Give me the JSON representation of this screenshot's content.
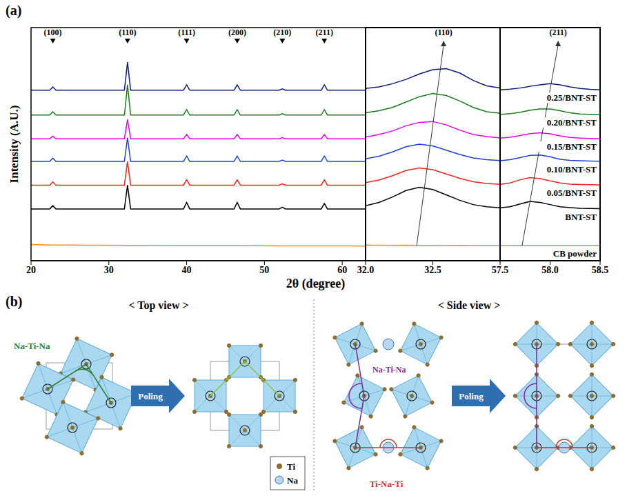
{
  "chart_data": [
    {
      "type": "line",
      "panel_label": "(a)",
      "y_label": "Intensity (A.U.)",
      "grid": false,
      "tick_labels": "x",
      "xlim": [
        20,
        63
      ],
      "xticks": [
        20,
        30,
        40,
        50,
        60
      ],
      "ylim": [
        0,
        108
      ],
      "yticks": [],
      "x": [
        20,
        22.4,
        22.8,
        23.2,
        32.0,
        32.4,
        32.8,
        39.6,
        40.0,
        40.4,
        46.1,
        46.5,
        46.9,
        51.9,
        52.3,
        52.7,
        57.3,
        57.7,
        58.1,
        63
      ],
      "series": [
        {
          "color": "#ff8c00",
          "values": [
            7.5,
            7.3,
            7.3,
            7.3,
            7.1,
            7.1,
            7.1,
            7,
            7,
            7,
            7,
            7,
            7,
            6.9,
            6.9,
            6.9,
            6.9,
            6.9,
            6.9,
            6.8
          ]
        },
        {
          "color": "#000000",
          "values": [
            24,
            24,
            25.5,
            24,
            24,
            35,
            24,
            24,
            27,
            24,
            24,
            27,
            24,
            24,
            24.8,
            24,
            24,
            26.5,
            24,
            24
          ]
        },
        {
          "color": "#e8251f",
          "values": [
            35,
            35,
            36.5,
            35,
            35,
            46,
            35,
            35,
            37.5,
            35,
            35,
            37.5,
            35,
            35,
            35.6,
            35,
            35,
            37.5,
            35,
            35
          ]
        },
        {
          "color": "#1f3fd6",
          "values": [
            46,
            46,
            47.5,
            46,
            46,
            57,
            46,
            46,
            48.5,
            46,
            46,
            48.5,
            46,
            46,
            46.6,
            46,
            46,
            48.5,
            46,
            46
          ]
        },
        {
          "color": "#e600e6",
          "values": [
            56.5,
            56.5,
            57.7,
            56.5,
            56.5,
            65.5,
            56.5,
            56.5,
            58.5,
            56.5,
            56.5,
            58.5,
            56.5,
            56.5,
            57,
            56.5,
            56.5,
            58.5,
            56.5,
            56.5
          ]
        },
        {
          "color": "#1a7a1a",
          "values": [
            67.5,
            67.5,
            69,
            67.5,
            67.5,
            81.5,
            67.5,
            67.5,
            70,
            67.5,
            67.5,
            70,
            67.5,
            67.5,
            68.1,
            67.5,
            67.5,
            70,
            67.5,
            67.5
          ]
        },
        {
          "color": "#0a1a7a",
          "values": [
            79,
            79,
            80.5,
            79,
            79,
            92,
            79,
            79,
            81.5,
            79,
            79,
            81.5,
            79,
            79,
            79.6,
            79,
            79,
            81.5,
            79,
            79
          ]
        }
      ],
      "annotations": [
        {
          "label": "(100)",
          "x": 22.8
        },
        {
          "label": "(110)",
          "x": 32.4
        },
        {
          "label": "(111)",
          "x": 40.0
        },
        {
          "label": "(200)",
          "x": 46.5
        },
        {
          "label": "(210)",
          "x": 52.3
        },
        {
          "label": "(211)",
          "x": 57.7
        }
      ]
    },
    {
      "type": "line",
      "x_label": "2θ (degree)",
      "grid": false,
      "tick_labels": "x",
      "xlim": [
        32.0,
        33.0
      ],
      "xticks": [
        {
          "value": 32.0,
          "label": "32.0"
        },
        32.5
      ],
      "ylim": [
        0,
        108
      ],
      "yticks": [],
      "x": [
        32.0,
        32.1,
        32.2,
        32.3,
        32.4,
        32.5,
        32.6,
        32.7,
        32.8,
        32.9,
        33.0
      ],
      "series": [
        {
          "color": "#ff8c00",
          "values": [
            7.2,
            7.2,
            7.1,
            7.2,
            7.1,
            7.1,
            7,
            7.1,
            7,
            7,
            7
          ]
        },
        {
          "color": "#000000",
          "values": [
            25.5,
            27,
            29.5,
            32.5,
            34,
            33,
            30.5,
            28,
            26,
            25,
            24.5
          ]
        },
        {
          "color": "#e8251f",
          "values": [
            36.2,
            37.4,
            39.4,
            41.8,
            43,
            42.2,
            40.2,
            38.2,
            36.6,
            35.8,
            35.4
          ]
        },
        {
          "color": "#1f3fd6",
          "values": [
            47.2,
            48.4,
            50.4,
            52.8,
            54,
            53.2,
            51.2,
            49.2,
            47.6,
            46.8,
            46.4
          ]
        },
        {
          "color": "#e600e6",
          "values": [
            57.3,
            58.5,
            60.1,
            62.5,
            64.1,
            64.5,
            62.9,
            60.5,
            58.5,
            57.5,
            56.9
          ]
        },
        {
          "color": "#1a7a1a",
          "values": [
            68.5,
            69.5,
            71,
            73.5,
            76,
            77.5,
            76.5,
            74,
            71,
            69,
            68.3
          ]
        },
        {
          "color": "#0a1a7a",
          "values": [
            79.8,
            80.5,
            82,
            84,
            86.5,
            88.5,
            89,
            87,
            83.5,
            81,
            80
          ]
        }
      ],
      "annotations": [
        {
          "label": "(110)",
          "x": 32.58
        }
      ],
      "trend_arrow": {
        "x": [
          32.38,
          32.58
        ],
        "y": [
          7,
          100
        ]
      }
    },
    {
      "type": "line",
      "grid": false,
      "tick_labels": "x",
      "xlim": [
        57.5,
        58.5
      ],
      "xticks": [
        {
          "value": 57.5,
          "label": "57.5"
        },
        {
          "value": 58.0,
          "label": "58.0"
        },
        58.5
      ],
      "ylim": [
        0,
        108
      ],
      "yticks": [],
      "x": [
        57.5,
        57.6,
        57.7,
        57.8,
        57.9,
        58.0,
        58.1,
        58.2,
        58.3,
        58.4,
        58.5
      ],
      "series": [
        {
          "name": "CB powder",
          "color": "#ff8c00",
          "values": [
            7,
            7,
            7,
            7,
            7,
            7,
            7,
            7,
            7,
            7,
            7
          ]
        },
        {
          "name": "BNT-ST",
          "color": "#000000",
          "values": [
            24.5,
            25,
            26.3,
            27.5,
            27,
            26,
            25,
            24.6,
            24.3,
            24.2,
            24.1
          ]
        },
        {
          "name": "0.05/BNT-ST",
          "color": "#e8251f",
          "values": [
            35.4,
            36,
            37.5,
            38.5,
            38,
            37,
            36,
            35.5,
            35.3,
            35.2,
            35.1
          ]
        },
        {
          "name": "0.10/BNT-ST",
          "color": "#1f3fd6",
          "values": [
            46.3,
            46.8,
            47.8,
            48.8,
            49,
            48.2,
            47,
            46.5,
            46.3,
            46.2,
            46.1
          ]
        },
        {
          "name": "0.15/BNT-ST",
          "color": "#e600e6",
          "values": [
            56.8,
            57.2,
            58,
            58.9,
            59.3,
            58.8,
            57.8,
            57.1,
            56.8,
            56.6,
            56.5
          ]
        },
        {
          "name": "0.20/BNT-ST",
          "color": "#1a7a1a",
          "values": [
            67.7,
            68.1,
            68.8,
            69.7,
            70.3,
            70.3,
            69.5,
            68.5,
            68,
            67.8,
            67.7
          ]
        },
        {
          "name": "0.25/BNT-ST",
          "color": "#0a1a7a",
          "values": [
            79.2,
            79.5,
            80,
            80.8,
            81.5,
            82,
            81.5,
            80.5,
            79.8,
            79.4,
            79.2
          ]
        }
      ],
      "annotations": [
        {
          "label": "(211)",
          "x": 58.08
        }
      ],
      "trend_arrow": {
        "x": [
          57.72,
          58.08
        ],
        "y": [
          7,
          100
        ]
      }
    }
  ],
  "diagram": {
    "panel_label": "(b)",
    "top_view": {
      "title": "< Top view >",
      "angle_label": "Na-Ti-Na",
      "arrow_label": "Poling"
    },
    "side_view": {
      "title": "< Side view >",
      "angle_labels": [
        "Na-Ti-Na",
        "Ti-Na-Ti"
      ],
      "arrow_label": "Poling"
    },
    "legend": [
      {
        "label": "Ti",
        "color": "#8b6d2f"
      },
      {
        "label": "Na",
        "color": "#b9d7f2"
      }
    ]
  }
}
